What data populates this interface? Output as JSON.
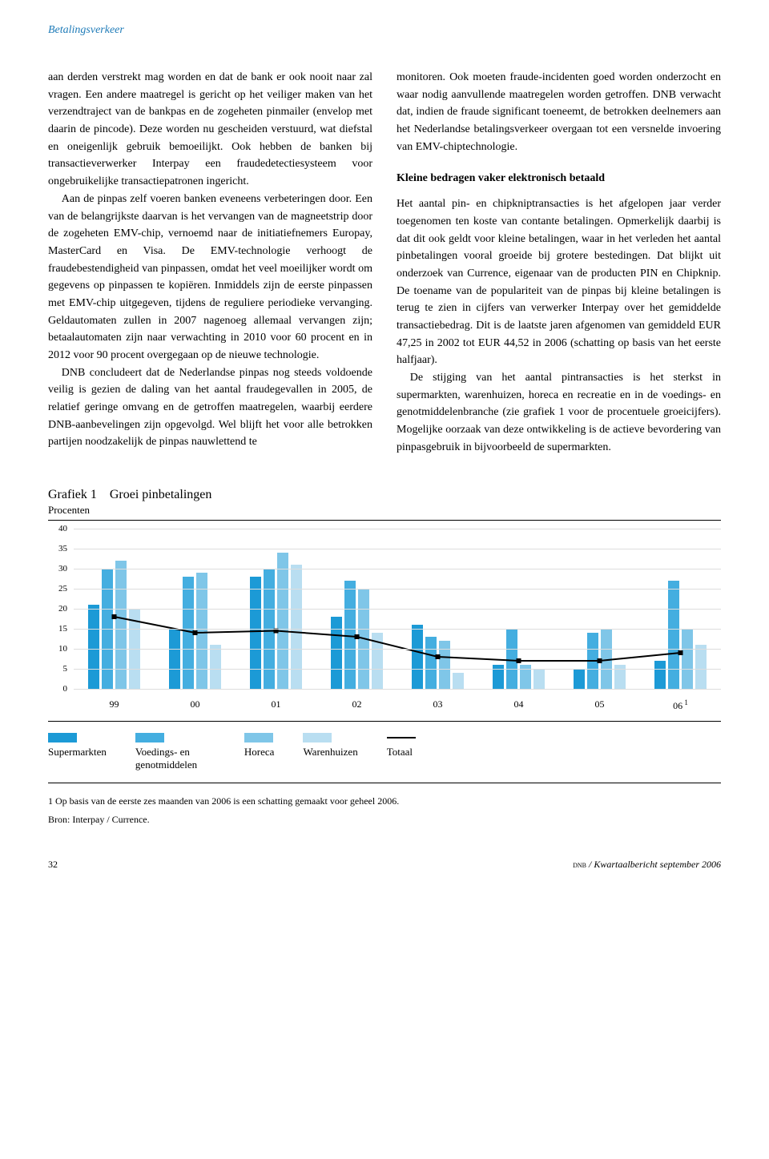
{
  "running_head": "Betalingsverkeer",
  "left_column": {
    "p1": "aan derden verstrekt mag worden en dat de bank er ook nooit naar zal vragen. Een andere maatregel is gericht op het veiliger maken van het verzendtraject van de bankpas en de zogeheten pinmailer (envelop met daarin de pincode). Deze worden nu gescheiden verstuurd, wat diefstal en oneigenlijk gebruik bemoeilijkt. Ook hebben de banken bij transactieverwerker Interpay een fraudedetectiesysteem voor ongebruikelijke transactiepatronen ingericht.",
    "p2": "Aan de pinpas zelf voeren banken eveneens verbeteringen door. Een van de belangrijkste daarvan is het vervangen van de magneetstrip door de zogeheten EMV-chip, vernoemd naar de initiatiefnemers Europay, MasterCard en Visa. De EMV-technologie verhoogt de fraudebestendigheid van pinpassen, omdat het veel moeilijker wordt om gegevens op pinpassen te kopiëren. Inmiddels zijn de eerste pinpassen met EMV-chip uitgegeven, tijdens de reguliere periodieke vervanging. Geldautomaten zullen in 2007 nagenoeg allemaal vervangen zijn; betaalautomaten zijn naar verwachting in 2010 voor 60 procent en in 2012 voor 90 procent overgegaan op de nieuwe technologie.",
    "p3": "DNB concludeert dat de Nederlandse pinpas nog steeds voldoende veilig is gezien de daling van het aantal fraudegevallen in 2005, de relatief geringe omvang en de getroffen maatregelen, waarbij eerdere DNB-aanbevelingen zijn opgevolgd. Wel blijft het voor alle betrokken partijen noodzakelijk de pinpas nauwlettend te"
  },
  "right_column": {
    "p1": "monitoren. Ook moeten fraude-incidenten goed worden onderzocht en waar nodig aanvullende maatregelen worden getroffen. DNB verwacht dat, indien de fraude significant toeneemt, de betrokken deelnemers aan het Nederlandse betalingsverkeer overgaan tot een versnelde invoering van EMV-chiptechnologie.",
    "subhead": "Kleine bedragen vaker elektronisch betaald",
    "p2": "Het aantal pin- en chipkniptransacties is het afgelopen jaar verder toegenomen ten koste van contante betalingen. Opmerkelijk daarbij is dat dit ook geldt voor kleine betalingen, waar in het verleden het aantal pinbetalingen vooral groeide bij grotere bestedingen. Dat blijkt uit onderzoek van Currence, eigenaar van de producten PIN en Chipknip. De toename van de populariteit van de pinpas bij kleine betalingen is terug te zien in cijfers van verwerker Interpay over het gemiddelde transactiebedrag. Dit is de laatste jaren afgenomen van gemiddeld EUR 47,25 in 2002 tot EUR 44,52 in 2006 (schatting op basis van het eerste halfjaar).",
    "p3": "De stijging van het aantal pintransacties is het sterkst in supermarkten, warenhuizen, horeca en recreatie en in de voedings- en genotmiddelenbranche (zie grafiek 1 voor de procentuele groeicijfers). Mogelijke oorzaak van deze ontwikkeling is de actieve bevordering van pinpasgebruik in bijvoorbeeld de supermarkten."
  },
  "chart": {
    "title_prefix": "Grafiek 1",
    "title_rest": "Groei pinbetalingen",
    "subtitle": "Procenten",
    "ylim": [
      0,
      40
    ],
    "ytick_step": 5,
    "yticks": [
      0,
      5,
      10,
      15,
      20,
      25,
      30,
      35,
      40
    ],
    "categories": [
      "99",
      "00",
      "01",
      "02",
      "03",
      "04",
      "05",
      "06"
    ],
    "cat_last_note": "1",
    "series": [
      {
        "name": "Supermarkten",
        "color": "#1c9ad6"
      },
      {
        "name": "Voedings- en genot­middelen",
        "color": "#44aee0"
      },
      {
        "name": "Horeca",
        "color": "#7fc6e8"
      },
      {
        "name": "Warenhuizen",
        "color": "#b9def1"
      }
    ],
    "line": {
      "name": "Totaal",
      "color": "#000000"
    },
    "data": {
      "Supermarkten": [
        21,
        15,
        28,
        18,
        16,
        6,
        5,
        7
      ],
      "Voedings": [
        30,
        28,
        30,
        27,
        13,
        15,
        14,
        27
      ],
      "Horeca": [
        32,
        29,
        34,
        25,
        12,
        6,
        15,
        15
      ],
      "Warenhuizen": [
        20,
        11,
        31,
        14,
        4,
        5,
        6,
        11
      ],
      "Totaal": [
        18,
        14,
        14.5,
        13,
        8,
        7,
        7,
        9
      ]
    },
    "grid_color": "#dddddd",
    "background_color": "#ffffff",
    "footnote": "1  Op basis van de eerste zes maanden van 2006 is een schatting gemaakt voor geheel 2006.",
    "source": "Bron: Interpay / Currence."
  },
  "footer": {
    "page_number": "32",
    "journal_sc": "dnb",
    "journal_rest": " / Kwartaalbericht september 2006"
  }
}
